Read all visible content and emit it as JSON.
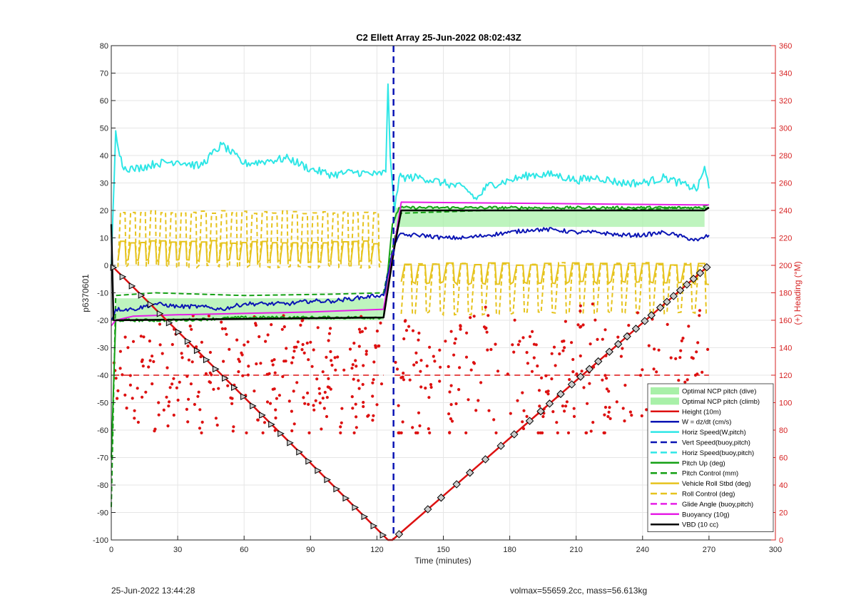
{
  "chart_data": {
    "type": "line",
    "title": "C2 Ellett Array 25-Jun-2022 08:02:43Z",
    "xlabel": "Time (minutes)",
    "ylabel": "p6370601",
    "y2label": "(+) Heading (°M)",
    "xlim": [
      0,
      300
    ],
    "ylim": [
      -100,
      80
    ],
    "y2lim": [
      0,
      360
    ],
    "xticks": [
      0,
      30,
      60,
      90,
      120,
      150,
      180,
      210,
      240,
      270,
      300
    ],
    "yticks": [
      -100,
      -90,
      -80,
      -70,
      -60,
      -50,
      -40,
      -30,
      -20,
      -10,
      0,
      10,
      20,
      30,
      40,
      50,
      60,
      70,
      80
    ],
    "y2ticks": [
      0,
      20,
      40,
      60,
      80,
      100,
      120,
      140,
      160,
      180,
      200,
      220,
      240,
      260,
      280,
      300,
      320,
      340,
      360
    ],
    "grid": true,
    "legend_position": "bottom-right",
    "legend": [
      {
        "label": "Optimal NCP pitch (dive)",
        "color": "#90ee90",
        "style": "patch"
      },
      {
        "label": "Optimal NCP pitch (climb)",
        "color": "#90ee90",
        "style": "patch"
      },
      {
        "label": "Height (10m)",
        "color": "#dd1111",
        "style": "solid"
      },
      {
        "label": "W = dz/dt (cm/s)",
        "color": "#0a14b4",
        "style": "solid"
      },
      {
        "label": "Horiz Speed(W,pitch)",
        "color": "#2ee6e6",
        "style": "solid"
      },
      {
        "label": "Vert Speed(buoy,pitch)",
        "color": "#0a14b4",
        "style": "dashed"
      },
      {
        "label": "Horiz Speed(buoy,pitch)",
        "color": "#2ee6e6",
        "style": "dashed"
      },
      {
        "label": "Pitch Up (deg)",
        "color": "#14a014",
        "style": "solid"
      },
      {
        "label": "Pitch Control (mm)",
        "color": "#14a014",
        "style": "dashed"
      },
      {
        "label": "Vehicle Roll Stbd (deg)",
        "color": "#e6c31e",
        "style": "solid"
      },
      {
        "label": "Roll Control (deg)",
        "color": "#e6c31e",
        "style": "dashed"
      },
      {
        "label": "Glide Angle (buoy,pitch)",
        "color": "#e61ee6",
        "style": "dashed"
      },
      {
        "label": "Buoyancy (10g)",
        "color": "#e61ee6",
        "style": "solid"
      },
      {
        "label": "VBD (10 cc)",
        "color": "#000000",
        "style": "solid"
      }
    ],
    "series": {
      "height": {
        "x": [
          0,
          125,
          127,
          270
        ],
        "y": [
          0,
          -100,
          -100,
          0
        ]
      },
      "vbd": {
        "x": [
          0,
          1,
          2,
          123,
          128,
          131,
          268,
          270
        ],
        "y": [
          15,
          -20,
          -20,
          -19,
          7,
          20,
          20,
          21
        ]
      },
      "buoyancy": {
        "x": [
          0,
          2,
          10,
          30,
          60,
          90,
          123,
          128,
          131,
          200,
          265,
          270
        ],
        "y": [
          -22,
          -20,
          -18.5,
          -18,
          -17.5,
          -17,
          -16,
          8,
          23,
          22.5,
          22,
          22
        ]
      },
      "pitch_control": {
        "x": [
          0,
          2,
          20,
          60,
          100,
          123,
          128,
          131,
          170,
          220,
          265,
          270
        ],
        "y": [
          -88,
          -11,
          -10,
          -11,
          -10.5,
          -10,
          10,
          19,
          20,
          20,
          21,
          22
        ]
      },
      "pitch_up": {
        "x": [
          0,
          2,
          30,
          60,
          90,
          123,
          127,
          130,
          180,
          240,
          270
        ],
        "y": [
          -70,
          -20,
          -20,
          -19,
          -19,
          -19,
          15,
          21,
          21,
          21,
          21
        ]
      },
      "w": {
        "x": [
          0,
          2,
          10,
          20,
          30,
          40,
          50,
          60,
          70,
          80,
          90,
          100,
          110,
          120,
          123,
          128,
          130,
          140,
          150,
          160,
          170,
          180,
          190,
          200,
          210,
          220,
          230,
          240,
          250,
          260,
          265,
          270
        ],
        "y": [
          -20,
          -16,
          -16,
          -14,
          -15,
          -15,
          -16,
          -14,
          -14,
          -14,
          -13,
          -13,
          -12,
          -11,
          -11,
          8,
          11,
          11,
          10,
          10,
          11,
          12,
          13,
          13,
          12,
          12,
          11,
          11,
          12,
          10,
          9,
          11
        ]
      },
      "horiz_speed": {
        "x": [
          0,
          2,
          5,
          10,
          20,
          30,
          40,
          50,
          60,
          70,
          80,
          90,
          100,
          110,
          120,
          124,
          125,
          126,
          128,
          130,
          140,
          150,
          160,
          165,
          170,
          180,
          190,
          200,
          210,
          220,
          230,
          240,
          250,
          260,
          265,
          268,
          270
        ],
        "y": [
          0,
          49,
          36,
          35,
          37,
          38,
          36,
          44,
          37,
          38,
          39,
          35,
          33,
          34,
          33,
          34,
          66,
          40,
          20,
          32,
          32,
          30,
          28,
          24,
          29,
          31,
          33,
          33,
          31,
          32,
          30,
          30,
          32,
          29,
          28,
          36,
          28
        ]
      },
      "vert_speed_buoy": {
        "x": [
          127.5,
          127.5
        ],
        "y": [
          80,
          -100
        ]
      },
      "roll_control": {
        "dive": {
          "x0": 3,
          "x1": 122,
          "cycles": 26,
          "high": 20,
          "low": -1
        },
        "climb": {
          "x0": 131,
          "x1": 270,
          "cycles": 22,
          "high": 1,
          "low": -18
        }
      },
      "vehicle_roll": {
        "dive": {
          "x0": 3,
          "x1": 122,
          "cycles": 26,
          "high": 9,
          "low": 1
        },
        "climb": {
          "x0": 131,
          "x1": 270,
          "cycles": 22,
          "high": 1,
          "low": -7
        }
      },
      "ncp_dive": {
        "x": [
          2,
          123
        ],
        "ymin": -20,
        "ymax": -12
      },
      "ncp_climb": {
        "x": [
          128,
          268
        ],
        "ymin": 14,
        "ymax": 21
      },
      "heading_mean": {
        "dive": {
          "x": [
            1,
            123
          ],
          "y": 120
        },
        "climb": {
          "x": [
            128,
            270
          ],
          "y": 120
        }
      }
    }
  },
  "footer": {
    "left": "25-Jun-2022 13:44:28",
    "right": "volmax=55659.2cc, mass=56.613kg"
  }
}
